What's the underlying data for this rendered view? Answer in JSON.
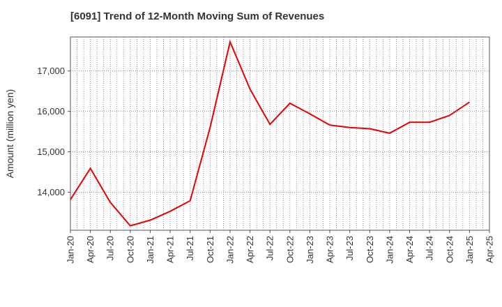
{
  "chart_data": {
    "type": "line",
    "title": "[6091]  Trend of 12-Month Moving Sum of Revenues",
    "xlabel": "",
    "ylabel": "Amount (million yen)",
    "x_ticks": [
      "Jan-20",
      "Apr-20",
      "Jul-20",
      "Oct-20",
      "Jan-21",
      "Apr-21",
      "Jul-21",
      "Oct-21",
      "Jan-22",
      "Apr-22",
      "Jul-22",
      "Oct-22",
      "Jan-23",
      "Apr-23",
      "Jul-23",
      "Oct-23",
      "Jan-24",
      "Apr-24",
      "Jul-24",
      "Oct-24",
      "Jan-25",
      "Apr-25"
    ],
    "y_ticks": [
      14000,
      15000,
      16000,
      17000
    ],
    "y_tick_labels": [
      "14,000",
      "15,000",
      "16,000",
      "17,000"
    ],
    "xlim": [
      "2020-01",
      "2025-04"
    ],
    "ylim": [
      13060,
      17840
    ],
    "grid": true,
    "grid_style": "dotted",
    "series": [
      {
        "color": "#e60000",
        "x": [
          "2020-01",
          "2020-04",
          "2020-07",
          "2020-10",
          "2021-01",
          "2021-04",
          "2021-07",
          "2021-10",
          "2022-01",
          "2022-04",
          "2022-07",
          "2022-10",
          "2023-01",
          "2023-04",
          "2023-07",
          "2023-10",
          "2024-01",
          "2024-04",
          "2024-07",
          "2024-10",
          "2025-01"
        ],
        "values": [
          13820,
          14590,
          13750,
          13170,
          13310,
          13530,
          13790,
          15600,
          17720,
          16550,
          15680,
          16200,
          15940,
          15660,
          15600,
          15570,
          15460,
          15730,
          15730,
          15900,
          16230
        ]
      }
    ]
  }
}
